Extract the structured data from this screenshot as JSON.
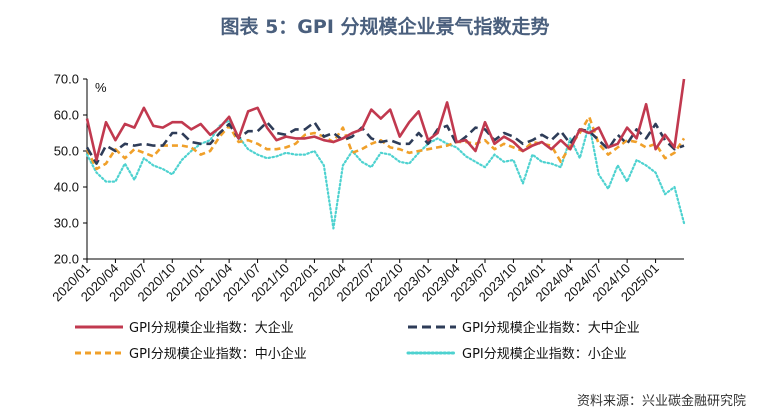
{
  "title": "图表 5：GPI 分规模企业景气指数走势",
  "source": "资料来源：兴业碳金融研究院",
  "chart_data": {
    "type": "line",
    "title": "图表 5：GPI 分规模企业景气指数走势",
    "ylabel": "%",
    "xlabel": "",
    "ylim": [
      20,
      70
    ],
    "yticks": [
      "20.0",
      "30.0",
      "40.0",
      "50.0",
      "60.0",
      "70.0"
    ],
    "xtick_labels": [
      "2020/01",
      "2020/04",
      "2020/07",
      "2020/10",
      "2021/01",
      "2021/04",
      "2021/07",
      "2021/10",
      "2022/01",
      "2022/04",
      "2022/07",
      "2022/10",
      "2023/01",
      "2023/04",
      "2023/07",
      "2023/10",
      "2024/01",
      "2024/04",
      "2024/07",
      "2024/10",
      "2025/01"
    ],
    "x_start": "2020/01",
    "grid": false,
    "legend_position": "bottom",
    "series": [
      {
        "name": "GPI分规模企业指数：大企业",
        "color": "#c1394f",
        "style": "solid",
        "values": [
          59.0,
          47.5,
          58.0,
          53.0,
          57.5,
          56.5,
          62.0,
          57.0,
          56.5,
          58.0,
          58.0,
          56.0,
          57.5,
          54.5,
          56.5,
          59.5,
          53.5,
          61.0,
          62.0,
          56.5,
          53.0,
          54.0,
          53.5,
          53.5,
          54.0,
          53.0,
          52.5,
          53.5,
          55.0,
          56.0,
          61.5,
          59.0,
          61.5,
          54.0,
          58.0,
          61.0,
          53.0,
          55.0,
          63.5,
          52.5,
          53.0,
          50.0,
          58.0,
          52.0,
          54.0,
          52.5,
          50.0,
          51.5,
          52.5,
          50.5,
          53.0,
          50.5,
          56.0,
          55.0,
          56.5,
          51.0,
          52.0,
          56.5,
          53.5,
          63.0,
          50.5,
          54.5,
          51.0,
          70.0
        ]
      },
      {
        "name": "GPI分规模企业指数：大中企业",
        "color": "#2e3c58",
        "style": "dashed",
        "values": [
          51.0,
          46.5,
          51.5,
          50.0,
          52.0,
          51.5,
          52.0,
          51.5,
          51.5,
          55.0,
          55.0,
          52.5,
          52.0,
          52.0,
          55.0,
          57.5,
          53.5,
          55.5,
          55.5,
          58.0,
          55.0,
          54.5,
          56.0,
          56.0,
          58.0,
          54.0,
          55.0,
          53.0,
          54.0,
          56.5,
          53.5,
          52.5,
          53.0,
          52.0,
          52.0,
          55.0,
          52.0,
          56.0,
          57.0,
          52.0,
          54.0,
          56.5,
          56.0,
          53.0,
          55.0,
          54.0,
          52.0,
          53.0,
          54.5,
          53.0,
          55.5,
          52.0,
          56.0,
          55.5,
          53.0,
          50.5,
          54.5,
          52.0,
          56.0,
          53.5,
          57.5,
          53.0,
          50.5,
          51.5
        ]
      },
      {
        "name": "GPI分规模企业指数：中小企业",
        "color": "#f0a02a",
        "style": "dashed",
        "values": [
          50.5,
          45.0,
          46.5,
          50.5,
          48.0,
          50.5,
          49.5,
          48.5,
          51.5,
          51.5,
          51.5,
          51.0,
          49.0,
          50.0,
          54.0,
          57.0,
          52.5,
          53.0,
          52.0,
          50.5,
          50.5,
          51.0,
          52.0,
          54.5,
          55.0,
          54.0,
          52.5,
          56.5,
          49.5,
          50.5,
          52.0,
          53.0,
          51.0,
          50.5,
          49.5,
          50.0,
          50.5,
          51.0,
          51.5,
          52.5,
          52.5,
          52.0,
          53.0,
          50.5,
          52.0,
          51.0,
          50.0,
          52.5,
          52.0,
          51.5,
          47.0,
          51.5,
          55.0,
          59.5,
          52.0,
          49.0,
          51.0,
          53.0,
          52.5,
          51.0,
          52.0,
          48.0,
          49.5,
          53.5
        ]
      },
      {
        "name": "GPI分规模企业指数：小企业",
        "color": "#4ed2d0",
        "style": "dotted",
        "values": [
          49.0,
          44.0,
          41.5,
          41.5,
          46.5,
          42.0,
          48.0,
          46.0,
          45.0,
          43.5,
          47.5,
          50.0,
          52.0,
          53.0,
          57.0,
          58.5,
          54.0,
          50.5,
          49.0,
          48.0,
          48.5,
          49.5,
          49.0,
          49.0,
          50.0,
          46.0,
          28.5,
          46.0,
          50.0,
          47.0,
          45.5,
          49.5,
          49.0,
          47.0,
          46.5,
          49.5,
          52.0,
          53.5,
          52.0,
          51.0,
          48.5,
          47.0,
          45.5,
          49.0,
          47.0,
          47.5,
          41.0,
          49.0,
          47.0,
          46.5,
          45.5,
          53.5,
          48.0,
          57.5,
          43.5,
          39.5,
          46.0,
          41.5,
          47.5,
          46.0,
          44.0,
          38.0,
          40.0,
          30.0
        ]
      }
    ]
  }
}
